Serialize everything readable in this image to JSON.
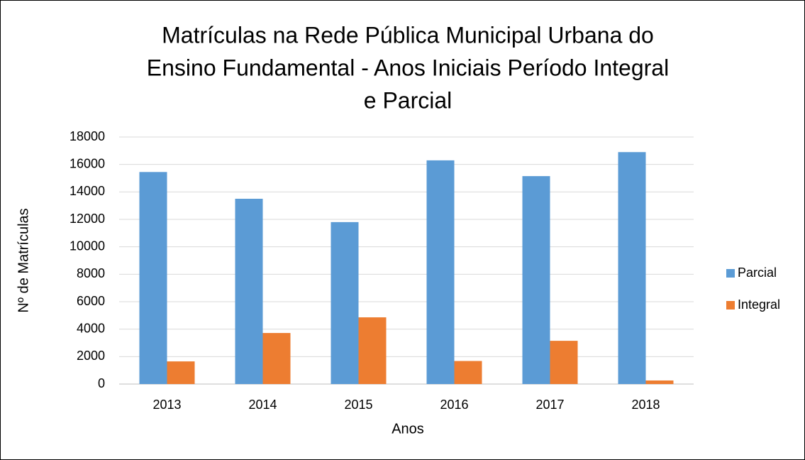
{
  "chart_data": {
    "type": "bar",
    "title": [
      "Matrículas na Rede Pública Municipal Urbana do",
      "Ensino Fundamental - Anos Iniciais   Período Integral",
      "e Parcial"
    ],
    "x_label": "Anos",
    "y_label": "Nº de Matrículas",
    "categories": [
      "2013",
      "2014",
      "2015",
      "2016",
      "2017",
      "2018"
    ],
    "series": [
      {
        "name": "Parcial",
        "color": "#5b9bd5",
        "values": [
          15450,
          13500,
          11800,
          16300,
          15150,
          16900
        ]
      },
      {
        "name": "Integral",
        "color": "#ed7d31",
        "values": [
          1650,
          3720,
          4860,
          1680,
          3150,
          260
        ]
      }
    ],
    "ylim": [
      0,
      18000
    ],
    "yticks": [
      0,
      2000,
      4000,
      6000,
      8000,
      10000,
      12000,
      14000,
      16000,
      18000
    ],
    "grid": true,
    "legend": "right"
  }
}
